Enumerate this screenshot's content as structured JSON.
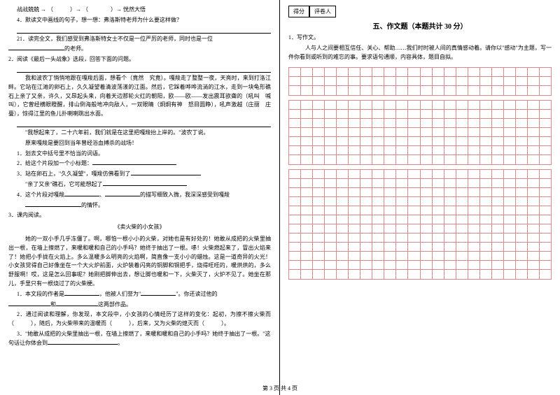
{
  "leftCol": {
    "l1": "战战兢兢 → （　　　）→ （　　　　）→ 恍然大悟",
    "l2": "4．默读文中画线的句子，想一想：弗洛斯特老师为什么要这样做？",
    "l3": "21．读完全文，我们感受到弗洛斯特女士不仅是一位严厉的老师，同时也是一位",
    "l3b": "的老师。",
    "q2": "2．阅读《最后一头战象》选段，回答下面的问题。",
    "p1": "我和波农丁悄悄地跟在嘎羧后面，想看个（竟然　究竟）。嘎羧走了整整一夜，天亮时，来到打洛江畔。它站在江滩的卵石上，久久凝望着清波荡漾的江面。然后，它踩着哗哗流淌的江水，走到一块龟形礁石上亲了又亲，许久，又昂起头来，向着天边那轮火红的朝阳，欧——欧——发出震耳欲聋的（吼叫　喊叫），它曾经横眼瞪醒，排山倒海般地冲向敌人，一双眼睛（炯炯有神　怒目圆睁），吼声激越（庄丽　庄亹），惊得江里的鱼儿扑喇喇跳出水面。",
    "p2": "\"我想起来了，二十六年前，我们就是在这里把嘎羧抬上岸的。\"波农丁说。",
    "p3": "原来嘎羧是要回到当年曾经浴血搏杀的战场！",
    "q2_1": "1．划去文中括号里不恰当的词语。",
    "q2_2": "2．给这个片段加一个小标题：",
    "q2_3a": "3．站在卵石上，\"久久凝望\"，嘎羧仿佛看到了",
    "q2_3b": "\"亲了又亲\"礁石，它可能想起了",
    "q2_4a": "4．这个片段对嘎羧",
    "q2_4b": "的描写细致入微，我深深感受到嘎羧",
    "q2_4c": "的情怀。",
    "q3": "3．课内阅读。",
    "title3": "《卖火柴的小女孩》",
    "p4": "她的一双小手几乎冻僵了。啊，哪怕一根小小的火柴，对她也是有好处的！她敢从成把的火柴里抽出一根，在墙上擦燃了，来暖和暖和自己的小手吗？她终于抽出了一根。哧！火柴燃起来了，冒出火焰来了！她把小手拢在火焰上。多么温暖多么明亮的火焰啊，简直像一支小小的蜡烛。这是一道奇异的火光！小女孩觉得自己好像坐在一个大火炉前面，火炉装着闪亮的铜脚和铜把手，烧得旺旺的，暖烘烘的，多么舒服啊！哎，这是怎么回事呢？她刚把脚伸出去，想让脚也暖和一下，火柴灭了，火炉不见了。她坐在那儿，手里只有一根烧过了的火柴梗。",
    "q3_1a": "1．本文段的作者是",
    "q3_1b": "，他被人们誉为\"",
    "q3_1c": "\"。你还读过他的",
    "q3_1d": "和",
    "q3_1e": "这两部作品。",
    "q3_2a": "2．通过阅读和理解，你发现，本文段中，小女孩的心情经历了这样的变化：起初，为擦不擦火柴而（　　　），随后，为火柴带来的温暖而（　　　），后来，又为火柴的熄灭而（　　　）。",
    "q3_3a": "3．\"她敢从成把的火柴里抽出一根，在墙上擦燃了，来暖和暖和自己的小手吗？她终于抽出了一根。\"这句话让你体会到"
  },
  "rightCol": {
    "scoreLabel1": "得分",
    "scoreLabel2": "评卷人",
    "sectionTitle": "五、作文题（本题共计 30 分）",
    "q1": "1．写作文。",
    "p1": "人与人之间要相互信任、关心、帮助……我们时时被人间的真情感动着。请你以\"感动\"为主题，写一件你看到或听到的难忘的事。要求语句通顺，内容具体，题目自拟。",
    "gridCols": 22,
    "block1Rows": 3,
    "block2Rows": 7,
    "block3Rows": 12,
    "gridColor": "#d88"
  },
  "footer": "第 3 页 共 4 页"
}
